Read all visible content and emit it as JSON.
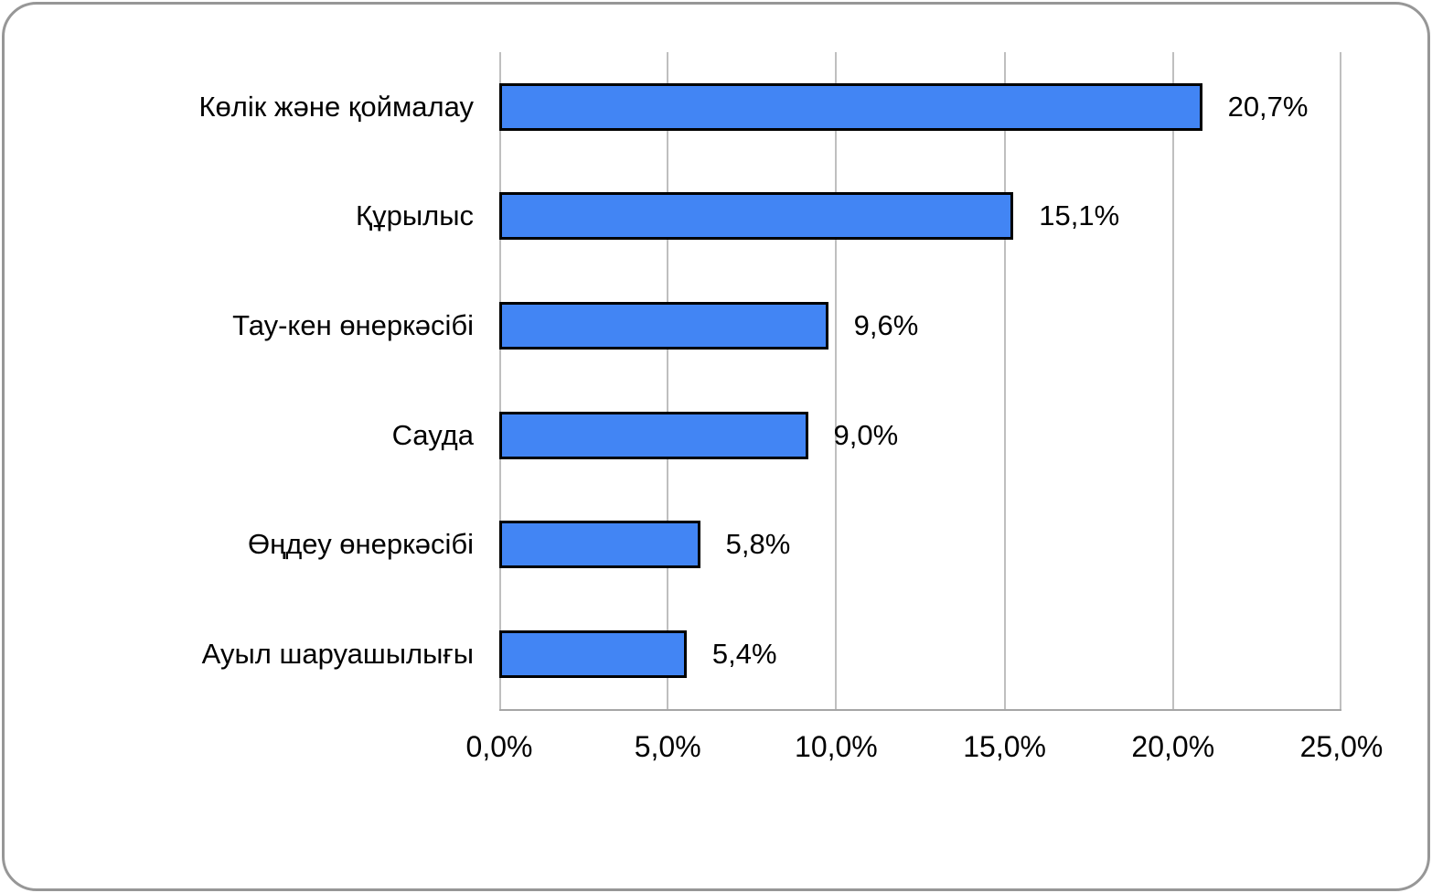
{
  "chart_data": {
    "type": "bar",
    "orientation": "horizontal",
    "title": "",
    "xlabel": "",
    "ylabel": "",
    "categories": [
      "Көлік және қоймалау",
      "Құрылыс",
      "Тау-кен өнеркәсібі",
      "Сауда",
      "Өңдеу өнеркәсібі",
      "Ауыл шаруашылығы"
    ],
    "values": [
      20.7,
      15.1,
      9.6,
      9.0,
      5.8,
      5.4
    ],
    "value_labels": [
      "20,7%",
      "15,1%",
      "9,6%",
      "9,0%",
      "5,8%",
      "5,4%"
    ],
    "x_tick_labels": [
      "0,0%",
      "5,0%",
      "10,0%",
      "15,0%",
      "20,0%",
      "25,0%"
    ],
    "xlim": [
      0,
      25
    ],
    "grid": true,
    "legend": "none",
    "colors": {
      "bar_fill": "#4285f4",
      "bar_border": "#000000",
      "gridline": "#bfbfbf",
      "axis_line": "#a6a6a6",
      "frame_border": "#979797",
      "text": "#000000",
      "background": "#ffffff"
    }
  }
}
